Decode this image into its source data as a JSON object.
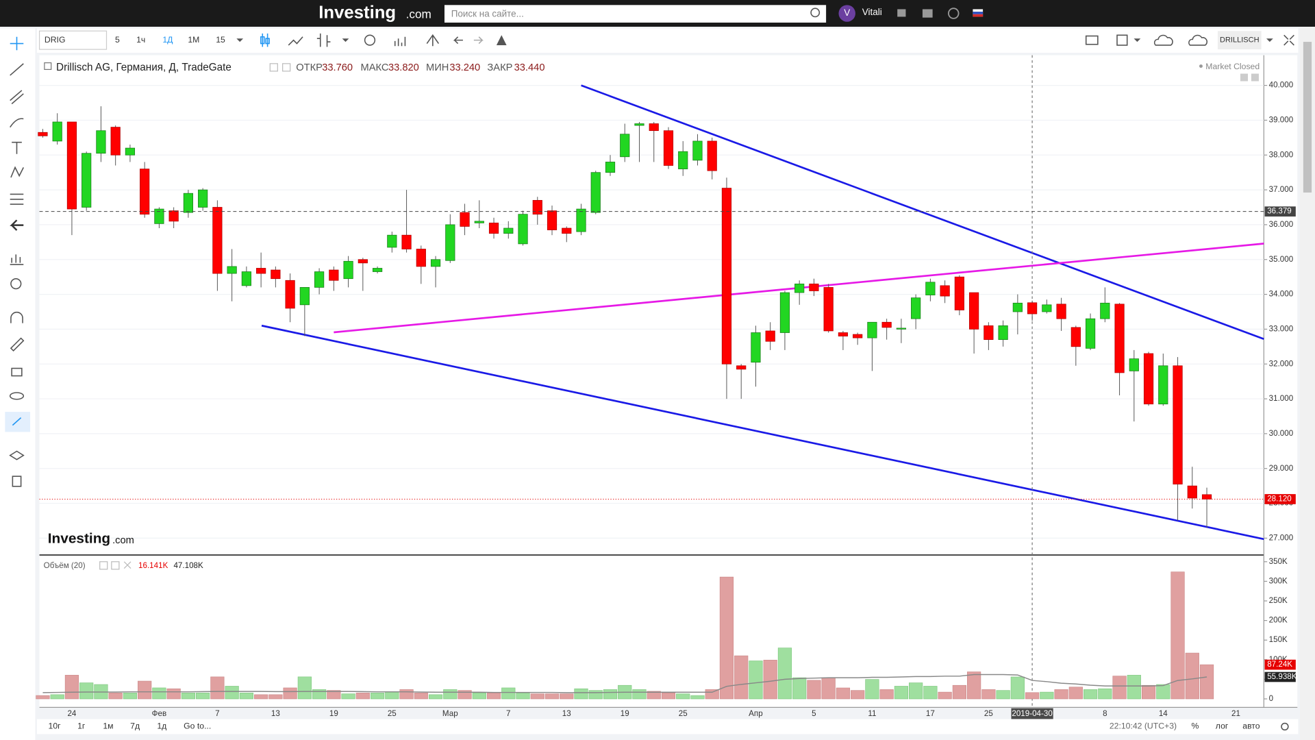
{
  "ui": {
    "logo": "Investing",
    "logo_suffix": ".com",
    "search_placeholder": "Поиск на сайте...",
    "user_initial": "V",
    "user_name": "Vitali",
    "symbol": "DRIG",
    "intervals": [
      "5",
      "1ч",
      "1Д",
      "1М",
      "15"
    ],
    "symbol_right": "DRILLISCH",
    "ranges": [
      "10г",
      "1г",
      "1м",
      "7д",
      "1д"
    ],
    "goto": "Go to...",
    "clock": "22:10:42 (UTC+3)",
    "scale_buttons": [
      "%",
      "лог",
      "авто"
    ],
    "market_status": "Market Closed",
    "watermark": "Investing",
    "watermark_suffix": ".com"
  },
  "chart_data": [
    {
      "type": "candlestick",
      "title": "Drillisch AG, Германия, Д, TradeGate",
      "readout": [
        {
          "name": "ОТКР",
          "label": "33.760"
        },
        {
          "name": "МАКС",
          "label": "33.820"
        },
        {
          "name": "МИН",
          "label": "33.240"
        },
        {
          "name": "ЗАКР",
          "label": "33.440"
        }
      ],
      "categories": [
        null,
        null,
        "24",
        null,
        null,
        null,
        null,
        null,
        "Фев",
        null,
        null,
        null,
        "7",
        null,
        null,
        null,
        "13",
        null,
        null,
        null,
        "19",
        null,
        null,
        null,
        "25",
        null,
        null,
        null,
        "Мар",
        null,
        null,
        null,
        "7",
        null,
        null,
        null,
        "13",
        null,
        null,
        null,
        "19",
        null,
        null,
        null,
        "25",
        null,
        null,
        null,
        null,
        "Апр",
        null,
        null,
        null,
        "5",
        null,
        null,
        null,
        "11",
        null,
        null,
        null,
        "17",
        null,
        null,
        null,
        "25",
        null,
        null,
        "2019-04-30",
        null,
        null,
        null,
        null,
        "8",
        null,
        null,
        null,
        "14",
        null,
        null,
        null,
        null,
        "21"
      ],
      "open": [
        38.65,
        38.4,
        38.95,
        36.5,
        38.05,
        38.8,
        38.0,
        37.6,
        36.03,
        36.4,
        36.35,
        36.5,
        36.5,
        34.6,
        34.25,
        34.75,
        34.7,
        34.4,
        33.7,
        34.2,
        34.7,
        34.45,
        35.0,
        34.65,
        35.35,
        35.7,
        35.3,
        34.8,
        34.97,
        36.35,
        36.05,
        36.05,
        35.75,
        35.45,
        36.7,
        36.4,
        35.9,
        35.8,
        36.35,
        37.5,
        37.95,
        38.85,
        38.9,
        38.7,
        37.6,
        37.85,
        38.4,
        37.05,
        31.95,
        32.05,
        32.95,
        32.9,
        34.05,
        34.3,
        34.2,
        32.9,
        32.85,
        32.75,
        33.2,
        33.0,
        33.3,
        33.98,
        34.25,
        34.5,
        34.05,
        33.1,
        32.7,
        33.5,
        33.76,
        33.5,
        33.72,
        33.05,
        32.45,
        33.3,
        33.72,
        31.8,
        32.3,
        30.85,
        31.95,
        28.5,
        28.25,
        null,
        null
      ],
      "high": [
        38.75,
        39.2,
        38.95,
        38.1,
        39.4,
        38.85,
        38.3,
        37.8,
        36.5,
        36.5,
        37.0,
        37.05,
        36.7,
        35.3,
        34.8,
        35.2,
        34.8,
        34.6,
        34.2,
        34.75,
        34.8,
        35.1,
        35.05,
        34.8,
        35.8,
        37.0,
        35.4,
        35.1,
        36.3,
        36.6,
        36.7,
        36.2,
        36.1,
        36.4,
        36.8,
        36.55,
        35.95,
        36.6,
        37.55,
        38.0,
        38.9,
        38.95,
        38.95,
        38.8,
        38.4,
        38.6,
        38.5,
        37.35,
        32.0,
        33.1,
        33.2,
        34.1,
        34.4,
        34.45,
        34.3,
        32.95,
        32.9,
        33.2,
        33.3,
        33.3,
        34.0,
        34.45,
        34.4,
        34.55,
        34.05,
        33.2,
        33.25,
        34.0,
        33.82,
        33.85,
        33.9,
        33.1,
        33.45,
        34.2,
        33.75,
        32.4,
        32.35,
        32.3,
        32.2,
        29.05,
        28.45,
        null,
        null
      ],
      "low": [
        38.5,
        38.3,
        35.7,
        36.4,
        37.8,
        37.7,
        37.8,
        36.2,
        35.9,
        35.9,
        36.2,
        36.4,
        34.1,
        33.8,
        34.2,
        34.2,
        34.2,
        33.2,
        32.8,
        34.0,
        34.1,
        34.2,
        34.1,
        34.6,
        35.2,
        35.2,
        34.3,
        34.2,
        34.9,
        35.7,
        35.9,
        35.6,
        35.6,
        35.4,
        36.0,
        35.7,
        35.5,
        35.7,
        36.3,
        37.4,
        37.8,
        37.8,
        37.8,
        37.6,
        37.4,
        37.7,
        37.3,
        31.0,
        31.0,
        31.35,
        32.4,
        32.4,
        33.7,
        33.95,
        32.9,
        32.4,
        32.55,
        31.8,
        32.7,
        32.6,
        33.0,
        33.8,
        33.75,
        33.4,
        32.3,
        32.4,
        32.5,
        32.85,
        33.24,
        33.45,
        32.95,
        31.95,
        32.4,
        33.2,
        31.1,
        30.35,
        30.8,
        30.8,
        27.5,
        27.85,
        27.3,
        null,
        null
      ],
      "close": [
        38.55,
        38.95,
        36.45,
        38.05,
        38.7,
        38.0,
        38.2,
        36.3,
        36.45,
        36.1,
        36.9,
        37.0,
        34.6,
        34.8,
        34.65,
        34.6,
        34.45,
        33.6,
        34.2,
        34.65,
        34.4,
        34.95,
        34.9,
        34.75,
        35.7,
        35.3,
        34.8,
        35.0,
        36.0,
        35.95,
        36.1,
        35.75,
        35.9,
        36.3,
        36.3,
        35.85,
        35.75,
        36.45,
        37.5,
        37.8,
        38.6,
        38.9,
        38.7,
        37.7,
        38.1,
        38.4,
        37.55,
        32.0,
        31.85,
        32.9,
        32.65,
        34.05,
        34.3,
        34.1,
        32.95,
        32.8,
        32.75,
        33.2,
        33.05,
        33.03,
        33.9,
        34.35,
        33.95,
        33.55,
        33.0,
        32.7,
        33.1,
        33.75,
        33.44,
        33.7,
        33.3,
        32.5,
        33.3,
        33.75,
        31.75,
        32.15,
        30.85,
        31.95,
        28.55,
        28.15,
        28.12,
        null,
        null
      ],
      "up_color": "#22d622",
      "down_color": "#ff0000",
      "ylim": [
        26.54,
        40.865
      ],
      "yticks": [
        {
          "value": 27,
          "label": "27.000"
        },
        {
          "value": 28,
          "label": "28.000"
        },
        {
          "value": 29,
          "label": "29.000"
        },
        {
          "value": 30,
          "label": "30.000"
        },
        {
          "value": 31,
          "label": "31.000"
        },
        {
          "value": 32,
          "label": "32.000"
        },
        {
          "value": 33,
          "label": "33.000"
        },
        {
          "value": 34,
          "label": "34.000"
        },
        {
          "value": 35,
          "label": "35.000"
        },
        {
          "value": 36,
          "label": "36.000"
        },
        {
          "value": 37,
          "label": "37.000"
        },
        {
          "value": 38,
          "label": "38.000"
        },
        {
          "value": 39,
          "label": "39.000"
        },
        {
          "value": 40,
          "label": "40.000"
        }
      ],
      "price_lines": [
        {
          "value": 36.379,
          "label": "36.379",
          "color": "#444444"
        },
        {
          "value": 28.12,
          "label": "28.120",
          "color": "#e60000"
        }
      ],
      "crosshair": "2019-04-30",
      "grid": true
    },
    {
      "type": "bar",
      "title": "Объём (20)",
      "readout": [
        "16.141K",
        "47.108K"
      ],
      "values": [
        8600,
        10800,
        60500,
        41000,
        36700,
        15100,
        15100,
        45400,
        28100,
        25900,
        15100,
        15100,
        56200,
        32400,
        15100,
        10800,
        10800,
        28100,
        56200,
        23800,
        21600,
        13000,
        15100,
        15100,
        17300,
        23800,
        15100,
        10800,
        23800,
        21600,
        15100,
        15100,
        28100,
        15100,
        13000,
        13000,
        13000,
        25900,
        21600,
        23800,
        34600,
        23800,
        19400,
        15100,
        13000,
        8600,
        23800,
        311000,
        110000,
        97000,
        99000,
        130000,
        54000,
        47500,
        54000,
        28000,
        21600,
        49700,
        23800,
        32400,
        41000,
        32400,
        17300,
        34600,
        69000,
        23800,
        21600,
        56000,
        16141,
        17300,
        23800,
        30200,
        23800,
        25900,
        58300,
        60500,
        34600,
        36700,
        324000,
        117000,
        87240,
        null,
        null
      ],
      "ma": {
        "values": [
          16000,
          16500,
          17000,
          17500,
          17500,
          17500,
          18000,
          18000,
          18000,
          18000,
          18000,
          18500,
          19000,
          19000,
          19000,
          19000,
          18500,
          18500,
          19000,
          19000,
          19000,
          19000,
          18500,
          18000,
          18000,
          18000,
          17500,
          17000,
          17000,
          17000,
          17000,
          16500,
          16500,
          16500,
          16500,
          16500,
          16000,
          16000,
          16000,
          16500,
          17000,
          17000,
          17000,
          17000,
          17000,
          17000,
          17000,
          32000,
          37000,
          41000,
          45000,
          50000,
          52000,
          53000,
          54000,
          54000,
          54000,
          55000,
          55000,
          56000,
          57000,
          57000,
          58000,
          58000,
          62000,
          62000,
          62000,
          61000,
          47108,
          44000,
          40000,
          38000,
          35000,
          33000,
          33000,
          33000,
          33000,
          34000,
          47000,
          51000,
          55938,
          null,
          null
        ],
        "color": "#888888"
      },
      "up_color": "#9fdf9f",
      "down_color": "#e0a0a0",
      "ylim": [
        -21600,
        365000
      ],
      "yticks": [
        0,
        {
          "value": 50000,
          "label": "50K"
        },
        {
          "value": 100000,
          "label": "100K"
        },
        {
          "value": 150000,
          "label": "150K"
        },
        {
          "value": 200000,
          "label": "200K"
        },
        {
          "value": 250000,
          "label": "250K"
        },
        {
          "value": 300000,
          "label": "300K"
        },
        {
          "value": 350000,
          "label": "350K"
        }
      ],
      "axis_labels": [
        {
          "value": 87240,
          "label": "87.24K",
          "color": "#e60000"
        },
        {
          "value": 55938,
          "label": "55.938K",
          "color": "#222222"
        }
      ]
    }
  ]
}
